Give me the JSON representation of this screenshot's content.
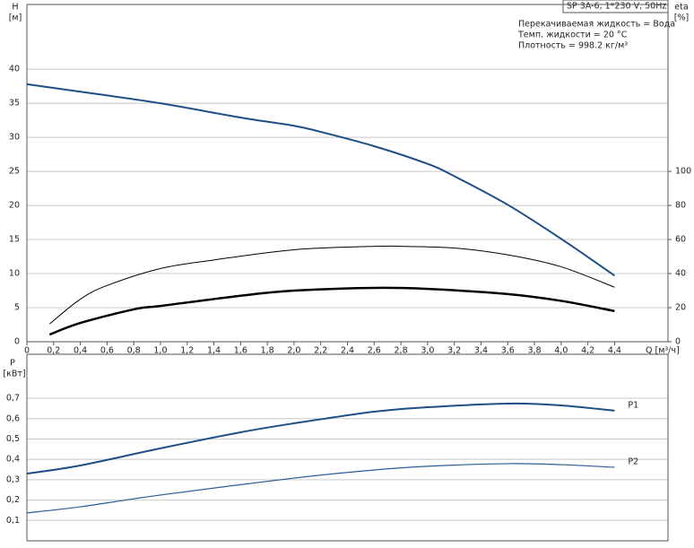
{
  "chart_data": [
    {
      "type": "line",
      "info": {
        "title": "SP 3A-6, 1*230 V, 50Hz",
        "lines": [
          "Перекачиваемая жидкость = Вода",
          "Темп. жидкости = 20 °C",
          "Плотность = 998.2 кг/м³"
        ]
      },
      "y_label": "H",
      "y_unit": "[м]",
      "y2_label": "eta",
      "y2_unit": "[%]",
      "x_label": "Q [м³/ч]",
      "xlim": [
        0,
        4.8
      ],
      "ylim": [
        0,
        49.5
      ],
      "y2lim": [
        0,
        198
      ],
      "xticks": [
        0,
        {
          "value": 0.2,
          "label": "0,2"
        },
        {
          "value": 0.4,
          "label": "0,4"
        },
        {
          "value": 0.6,
          "label": "0,6"
        },
        {
          "value": 0.8,
          "label": "0,8"
        },
        {
          "value": 1.0,
          "label": "1,0"
        },
        {
          "value": 1.2,
          "label": "1,2"
        },
        {
          "value": 1.4,
          "label": "1,4"
        },
        {
          "value": 1.6,
          "label": "1,6"
        },
        {
          "value": 1.8,
          "label": "1,8"
        },
        {
          "value": 2.0,
          "label": "2,0"
        },
        {
          "value": 2.2,
          "label": "2,2"
        },
        {
          "value": 2.4,
          "label": "2,4"
        },
        {
          "value": 2.6,
          "label": "2,6"
        },
        {
          "value": 2.8,
          "label": "2,8"
        },
        {
          "value": 3.0,
          "label": "3,0"
        },
        {
          "value": 3.2,
          "label": "3,2"
        },
        {
          "value": 3.4,
          "label": "3,4"
        },
        {
          "value": 3.6,
          "label": "3,6"
        },
        {
          "value": 3.8,
          "label": "3,8"
        },
        {
          "value": 4.0,
          "label": "4,0"
        },
        {
          "value": 4.2,
          "label": "4,2"
        },
        {
          "value": 4.4,
          "label": "4,4"
        }
      ],
      "yticks": [
        0,
        5,
        10,
        15,
        20,
        25,
        30,
        35,
        40
      ],
      "y2ticks": [
        0,
        20,
        40,
        60,
        80,
        100
      ],
      "grid": true,
      "series": [
        {
          "color": "#1d4f85",
          "width": 2,
          "x": [
            0,
            0.4,
            1.0,
            1.6,
            2.0,
            2.2,
            2.6,
            3.0,
            3.2,
            3.6,
            4.0,
            4.4
          ],
          "values": [
            37.8,
            36.7,
            35.0,
            32.9,
            31.7,
            30.8,
            28.7,
            26.1,
            24.3,
            20.1,
            15.1,
            9.7
          ]
        },
        {
          "color": "#000000",
          "width": 1,
          "axis": "y2",
          "x": [
            0.17,
            0.4,
            0.6,
            1.0,
            1.4,
            2.0,
            2.6,
            2.8,
            3.2,
            3.6,
            4.0,
            4.4
          ],
          "values": [
            10.5,
            25,
            33,
            43,
            48,
            54,
            56,
            56,
            55,
            51,
            44,
            32
          ]
        },
        {
          "color": "#000000",
          "width": 2.5,
          "axis": "y2",
          "x": [
            0.17,
            0.4,
            0.8,
            1.0,
            1.6,
            2.0,
            2.6,
            3.0,
            3.6,
            4.0,
            4.4
          ],
          "values": [
            4.2,
            11,
            19,
            21,
            27,
            30,
            31.6,
            31,
            28,
            24,
            18
          ]
        }
      ]
    },
    {
      "type": "line",
      "y_label": "P",
      "y_unit": "[кВт]",
      "xlim": [
        0,
        4.8
      ],
      "ylim": [
        0,
        0.916
      ],
      "yticks": [
        {
          "value": 0.1,
          "label": "0,1"
        },
        {
          "value": 0.2,
          "label": "0,2"
        },
        {
          "value": 0.3,
          "label": "0,3"
        },
        {
          "value": 0.4,
          "label": "0,4"
        },
        {
          "value": 0.5,
          "label": "0,5"
        },
        {
          "value": 0.6,
          "label": "0,6"
        },
        {
          "value": 0.7,
          "label": "0,7"
        }
      ],
      "grid": true,
      "series": [
        {
          "name": "P1",
          "color": "#1d4f85",
          "width": 2,
          "x": [
            0,
            0.4,
            1.0,
            1.6,
            2.0,
            2.6,
            3.0,
            3.6,
            4.0,
            4.4
          ],
          "values": [
            0.33,
            0.37,
            0.454,
            0.533,
            0.577,
            0.634,
            0.656,
            0.674,
            0.665,
            0.639
          ]
        },
        {
          "name": "P2",
          "color": "#2a5c9a",
          "width": 1.2,
          "x": [
            0,
            0.4,
            1.0,
            2.0,
            2.6,
            3.0,
            3.6,
            4.0,
            4.4
          ],
          "values": [
            0.137,
            0.167,
            0.225,
            0.308,
            0.348,
            0.366,
            0.379,
            0.374,
            0.361
          ]
        }
      ]
    }
  ]
}
